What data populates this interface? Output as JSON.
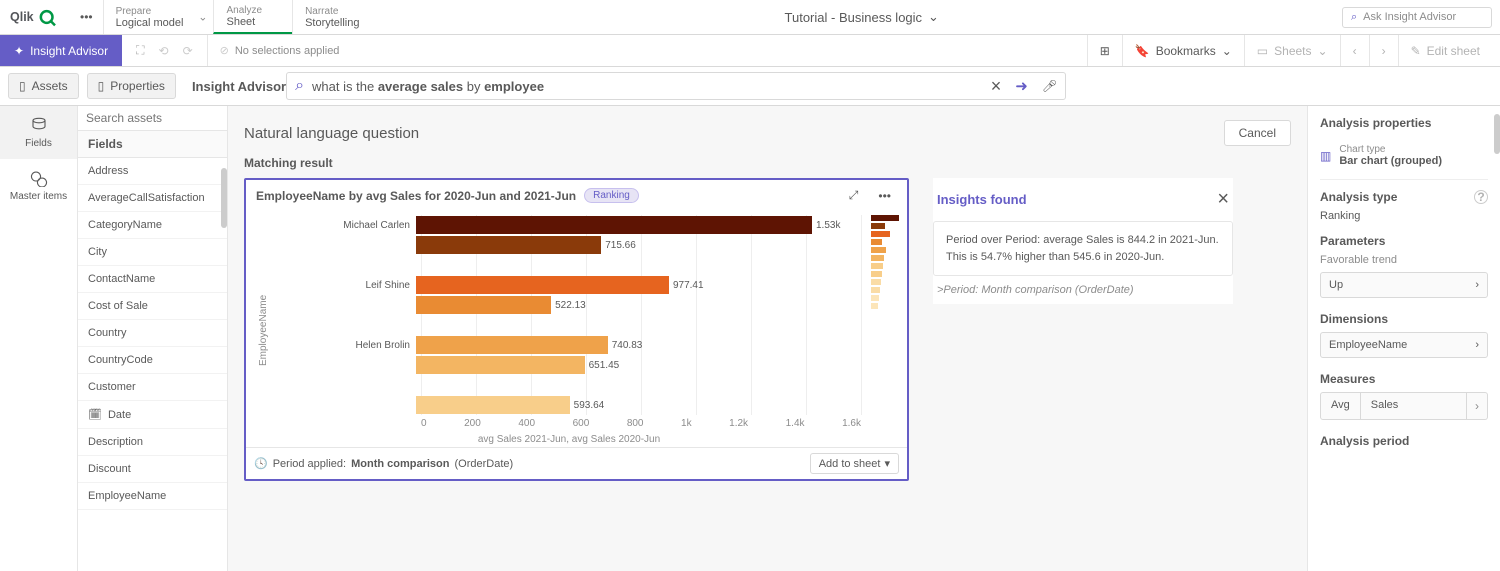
{
  "topbar": {
    "nav": [
      {
        "sup": "Prepare",
        "sub": "Logical model",
        "chevron": true
      },
      {
        "sup": "Analyze",
        "sub": "Sheet",
        "active": true
      },
      {
        "sup": "Narrate",
        "sub": "Storytelling"
      }
    ],
    "app_title": "Tutorial - Business logic",
    "search_placeholder": "Ask Insight Advisor"
  },
  "secbar": {
    "advisor_label": "Insight Advisor",
    "nosel": "No selections applied",
    "bookmarks": "Bookmarks",
    "sheets": "Sheets",
    "edit": "Edit sheet"
  },
  "tertbar": {
    "assets_btn": "Assets",
    "props_btn": "Properties",
    "title": "Insight Advisor",
    "query_pre": "what is the ",
    "query_b1": "average sales",
    "query_mid": " by ",
    "query_b2": "employee"
  },
  "far_left": {
    "fields": "Fields",
    "master": "Master items"
  },
  "fields_panel": {
    "search_placeholder": "Search assets",
    "header": "Fields",
    "items": [
      "Address",
      "AverageCallSatisfaction",
      "CategoryName",
      "City",
      "ContactName",
      "Cost of Sale",
      "Country",
      "CountryCode",
      "Customer",
      "Date",
      "Description",
      "Discount",
      "EmployeeName"
    ]
  },
  "canvas": {
    "title": "Natural language question",
    "cancel": "Cancel",
    "matching": "Matching result"
  },
  "chart": {
    "title": "EmployeeName by avg Sales for 2020-Jun and 2021-Jun",
    "badge": "Ranking",
    "ylabel": "EmployeeName",
    "xlabel": "avg Sales 2021-Jun, avg Sales 2020-Jun",
    "xmax": 1700,
    "xticks": [
      "0",
      "200",
      "400",
      "600",
      "800",
      "1k",
      "1.2k",
      "1.4k",
      "1.6k"
    ],
    "bars": [
      {
        "name": "Michael Carlen",
        "v": 1530,
        "label": "1.53k",
        "color": "#5e1403",
        "row": 0
      },
      {
        "name": "",
        "v": 715.66,
        "label": "715.66",
        "color": "#8a3a0a",
        "row": 1
      },
      {
        "name": "Leif Shine",
        "v": 977.41,
        "label": "977.41",
        "color": "#e6641f",
        "row": 3
      },
      {
        "name": "",
        "v": 522.13,
        "label": "522.13",
        "color": "#e98b33",
        "row": 4
      },
      {
        "name": "Helen Brolin",
        "v": 740.83,
        "label": "740.83",
        "color": "#efa24a",
        "row": 6
      },
      {
        "name": "",
        "v": 651.45,
        "label": "651.45",
        "color": "#f3b562",
        "row": 7
      },
      {
        "name": "",
        "v": 593.64,
        "label": "593.64",
        "color": "#f8ce8a",
        "row": 9
      }
    ],
    "minimap": [
      {
        "w": 28,
        "c": "#5e1403"
      },
      {
        "w": 14,
        "c": "#8a3a0a"
      },
      {
        "w": 19,
        "c": "#e6641f"
      },
      {
        "w": 11,
        "c": "#e98b33"
      },
      {
        "w": 15,
        "c": "#efa24a"
      },
      {
        "w": 13,
        "c": "#f3b562"
      },
      {
        "w": 12,
        "c": "#f8ce8a"
      },
      {
        "w": 11,
        "c": "#f8ce8a"
      },
      {
        "w": 10,
        "c": "#fadca6"
      },
      {
        "w": 9,
        "c": "#fadca6"
      },
      {
        "w": 8,
        "c": "#fce5b9"
      },
      {
        "w": 7,
        "c": "#fce5b9"
      }
    ],
    "footer_label": "Period applied:",
    "footer_period": "Month comparison",
    "footer_suffix": " (OrderDate)",
    "add_btn": "Add to sheet"
  },
  "insights": {
    "title": "Insights found",
    "text": "Period over Period: average Sales is 844.2 in 2021-Jun. This is 54.7% higher than 545.6 in 2020-Jun.",
    "note": ">Period: Month comparison (OrderDate)"
  },
  "analysis": {
    "title": "Analysis properties",
    "chart_type_label": "Chart type",
    "chart_type_value": "Bar chart (grouped)",
    "analysis_type_label": "Analysis type",
    "analysis_type_value": "Ranking",
    "parameters_label": "Parameters",
    "fav_trend_label": "Favorable trend",
    "fav_trend_value": "Up",
    "dimensions_label": "Dimensions",
    "dimension_value": "EmployeeName",
    "measures_label": "Measures",
    "measure_agg": "Avg",
    "measure_field": "Sales",
    "period_label": "Analysis period"
  },
  "colors": {
    "accent": "#655dc6",
    "green": "#009845"
  }
}
